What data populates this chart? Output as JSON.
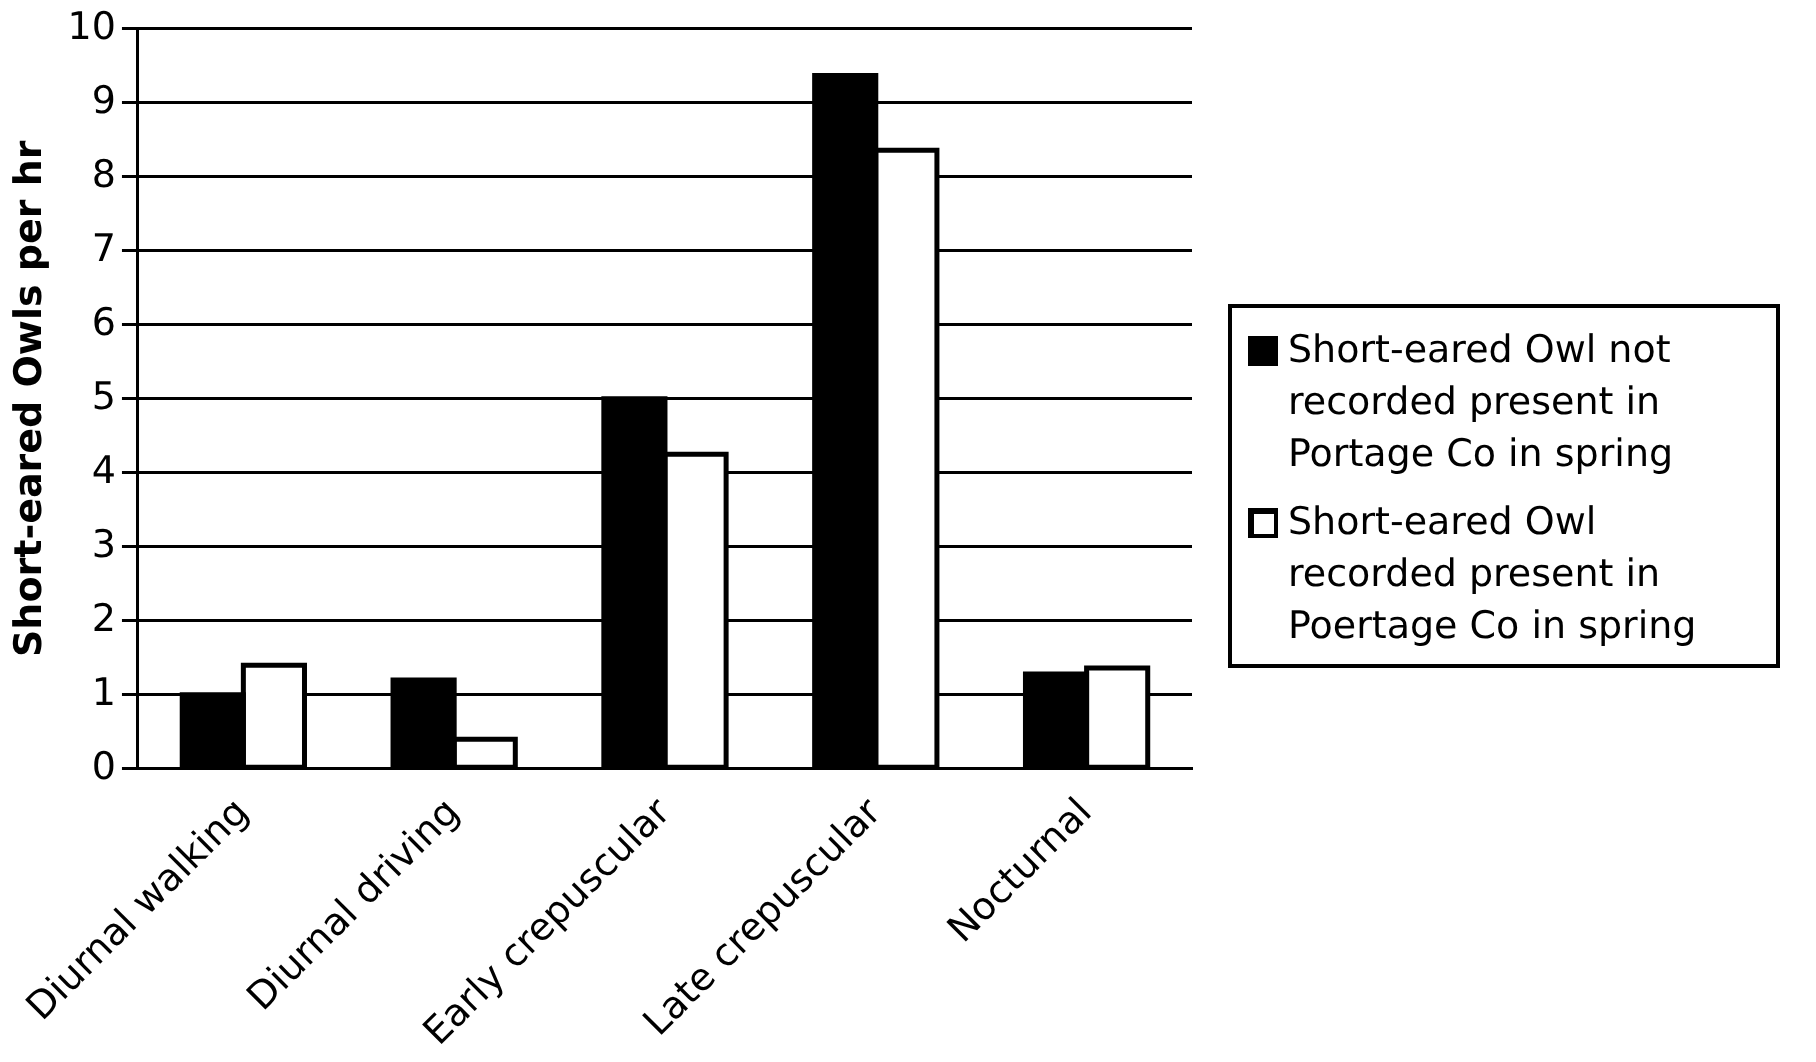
{
  "chart_data": {
    "type": "bar",
    "ylabel": "Short-eared Owls per hr",
    "categories": [
      "Diurnal walking",
      "Diurnal driving",
      "Early crepuscular",
      "Late crepuscular",
      "Nocturnal"
    ],
    "series": [
      {
        "name": "Short-eared Owl not recorded present in Portage Co in spring",
        "color": "#000000",
        "values": [
          1.0,
          1.2,
          5.0,
          9.37,
          1.28
        ]
      },
      {
        "name": "Short-eared Owl recorded present in Poertage Co in spring",
        "color": "#ffffff",
        "values": [
          1.4,
          0.4,
          4.25,
          8.36,
          1.36
        ]
      }
    ],
    "ylim": [
      0,
      10
    ],
    "yticks": [
      0,
      1,
      2,
      3,
      4,
      5,
      6,
      7,
      8,
      9,
      10
    ],
    "grid": "y",
    "legend": "right"
  }
}
